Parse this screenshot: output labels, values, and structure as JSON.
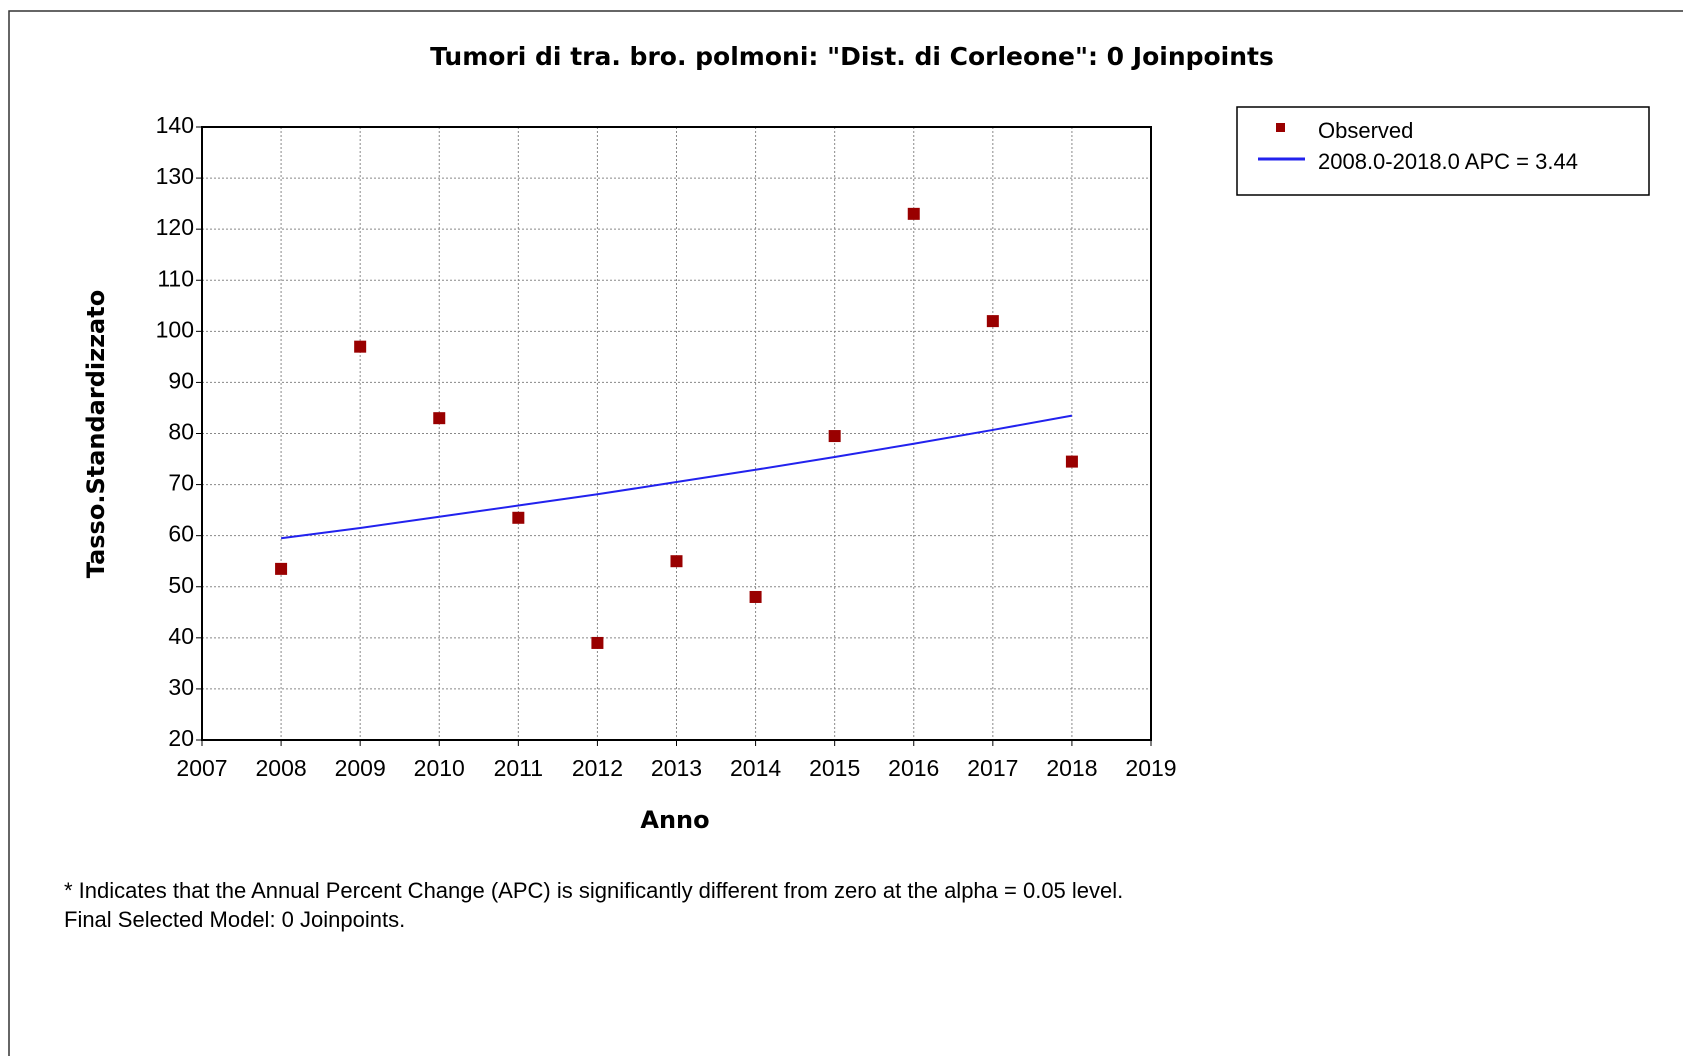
{
  "chart_data": {
    "type": "scatter",
    "title": "Tumori di tra. bro. polmoni: \"Dist. di Corleone\": 0 Joinpoints",
    "xlabel": "Anno",
    "ylabel": "Tasso.Standardizzato",
    "x": [
      2008,
      2009,
      2010,
      2011,
      2012,
      2013,
      2014,
      2015,
      2016,
      2017,
      2018
    ],
    "series": [
      {
        "name": "Observed",
        "type": "scatter",
        "color": "#990000",
        "values": [
          53.5,
          97,
          83,
          63.5,
          39,
          55,
          48,
          79.5,
          123,
          102,
          74.5
        ]
      },
      {
        "name": "2008.0-2018.0 APC  = 3.44",
        "type": "line",
        "color": "#2222ee",
        "values": [
          59.5,
          61.5,
          63.7,
          65.9,
          68.1,
          70.5,
          72.9,
          75.4,
          78.0,
          80.7,
          83.5
        ]
      }
    ],
    "xlim": [
      2007,
      2019
    ],
    "xticks": [
      2007,
      2008,
      2009,
      2010,
      2011,
      2012,
      2013,
      2014,
      2015,
      2016,
      2017,
      2018,
      2019
    ],
    "ylim": [
      20,
      140
    ],
    "yticks": [
      20,
      30,
      40,
      50,
      60,
      70,
      80,
      90,
      100,
      110,
      120,
      130,
      140
    ],
    "grid": true,
    "legend": "outside-right",
    "notes": [
      "* Indicates that the Annual Percent Change (APC) is significantly different from zero at the alpha = 0.05 level.",
      "Final Selected Model: 0 Joinpoints."
    ]
  }
}
